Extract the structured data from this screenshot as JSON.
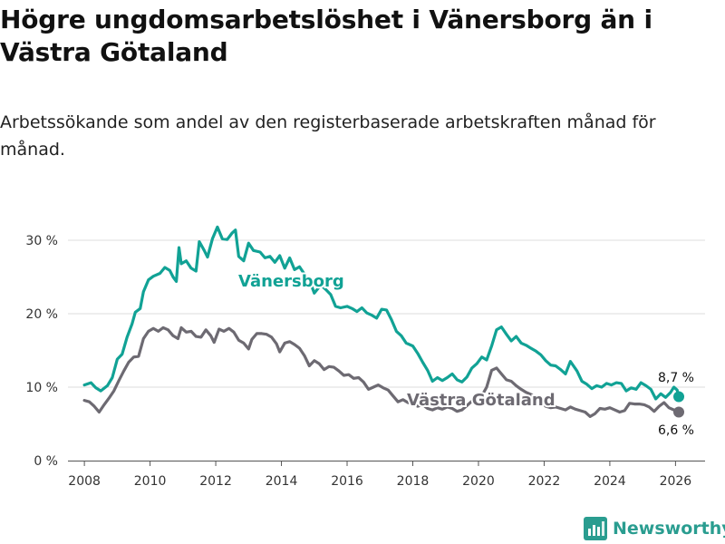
{
  "header": {
    "title": "Högre ungdomsarbetslöshet i Vänersborg än i Västra Götaland",
    "subtitle": "Arbetssökande som andel av den registerbaserade arbetskraften månad för månad."
  },
  "brand": {
    "name": "Newsworthy",
    "icon": "newsworthy-logo-icon"
  },
  "colors": {
    "vanersborg": "#11a295",
    "vastra": "#6d6a72",
    "grid": "#dddddd",
    "axis": "#555555"
  },
  "chart_data": {
    "type": "line",
    "title": "Högre ungdomsarbetslöshet i Vänersborg än i Västra Götaland",
    "xlabel": "",
    "ylabel": "",
    "xlim": [
      2007.5,
      2026.9
    ],
    "ylim": [
      0,
      30
    ],
    "grid": true,
    "x_ticks": [
      2008,
      2010,
      2012,
      2014,
      2016,
      2018,
      2020,
      2022,
      2024,
      2026
    ],
    "y_ticks": [
      {
        "value": 0,
        "label": "0 %"
      },
      {
        "value": 10,
        "label": "10 %"
      },
      {
        "value": 20,
        "label": "20 %"
      },
      {
        "value": 30,
        "label": "30 %"
      }
    ],
    "series": [
      {
        "name": "Vänersborg",
        "color": "#11a295",
        "end_label": "8,7 %",
        "points": [
          [
            2008.0,
            10.3
          ],
          [
            2008.2,
            10.6
          ],
          [
            2008.35,
            9.9
          ],
          [
            2008.5,
            9.5
          ],
          [
            2008.7,
            10.2
          ],
          [
            2008.85,
            11.3
          ],
          [
            2009.0,
            13.8
          ],
          [
            2009.15,
            14.5
          ],
          [
            2009.3,
            16.8
          ],
          [
            2009.45,
            18.6
          ],
          [
            2009.55,
            20.2
          ],
          [
            2009.7,
            20.7
          ],
          [
            2009.8,
            23.0
          ],
          [
            2009.95,
            24.6
          ],
          [
            2010.1,
            25.1
          ],
          [
            2010.3,
            25.5
          ],
          [
            2010.45,
            26.3
          ],
          [
            2010.6,
            25.9
          ],
          [
            2010.7,
            25.0
          ],
          [
            2010.8,
            24.4
          ],
          [
            2010.88,
            29.0
          ],
          [
            2010.95,
            26.8
          ],
          [
            2011.1,
            27.2
          ],
          [
            2011.25,
            26.2
          ],
          [
            2011.4,
            25.8
          ],
          [
            2011.5,
            29.8
          ],
          [
            2011.65,
            28.6
          ],
          [
            2011.75,
            27.7
          ],
          [
            2011.9,
            30.2
          ],
          [
            2012.05,
            31.8
          ],
          [
            2012.2,
            30.2
          ],
          [
            2012.35,
            30.1
          ],
          [
            2012.5,
            31.0
          ],
          [
            2012.6,
            31.4
          ],
          [
            2012.7,
            27.8
          ],
          [
            2012.85,
            27.2
          ],
          [
            2013.0,
            29.6
          ],
          [
            2013.15,
            28.6
          ],
          [
            2013.35,
            28.4
          ],
          [
            2013.5,
            27.6
          ],
          [
            2013.65,
            27.8
          ],
          [
            2013.8,
            27.0
          ],
          [
            2013.95,
            27.9
          ],
          [
            2014.1,
            26.2
          ],
          [
            2014.25,
            27.6
          ],
          [
            2014.4,
            26.0
          ],
          [
            2014.55,
            26.4
          ],
          [
            2014.7,
            25.4
          ],
          [
            2014.85,
            24.6
          ],
          [
            2015.0,
            22.8
          ],
          [
            2015.2,
            23.9
          ],
          [
            2015.35,
            23.3
          ],
          [
            2015.5,
            22.6
          ],
          [
            2015.65,
            21.0
          ],
          [
            2015.8,
            20.8
          ],
          [
            2016.0,
            21.0
          ],
          [
            2016.15,
            20.7
          ],
          [
            2016.3,
            20.3
          ],
          [
            2016.45,
            20.8
          ],
          [
            2016.6,
            20.1
          ],
          [
            2016.75,
            19.8
          ],
          [
            2016.9,
            19.4
          ],
          [
            2017.05,
            20.6
          ],
          [
            2017.2,
            20.5
          ],
          [
            2017.35,
            19.2
          ],
          [
            2017.5,
            17.6
          ],
          [
            2017.65,
            17.0
          ],
          [
            2017.8,
            16.0
          ],
          [
            2018.0,
            15.6
          ],
          [
            2018.15,
            14.6
          ],
          [
            2018.3,
            13.4
          ],
          [
            2018.45,
            12.3
          ],
          [
            2018.6,
            10.8
          ],
          [
            2018.75,
            11.3
          ],
          [
            2018.9,
            10.9
          ],
          [
            2019.05,
            11.3
          ],
          [
            2019.2,
            11.8
          ],
          [
            2019.35,
            11.0
          ],
          [
            2019.5,
            10.7
          ],
          [
            2019.65,
            11.4
          ],
          [
            2019.8,
            12.6
          ],
          [
            2019.95,
            13.2
          ],
          [
            2020.1,
            14.1
          ],
          [
            2020.25,
            13.7
          ],
          [
            2020.4,
            15.6
          ],
          [
            2020.55,
            17.8
          ],
          [
            2020.7,
            18.2
          ],
          [
            2020.85,
            17.2
          ],
          [
            2021.0,
            16.3
          ],
          [
            2021.15,
            16.9
          ],
          [
            2021.3,
            16.0
          ],
          [
            2021.45,
            15.7
          ],
          [
            2021.6,
            15.3
          ],
          [
            2021.75,
            14.9
          ],
          [
            2021.9,
            14.4
          ],
          [
            2022.05,
            13.6
          ],
          [
            2022.2,
            13.0
          ],
          [
            2022.35,
            12.9
          ],
          [
            2022.5,
            12.4
          ],
          [
            2022.65,
            11.8
          ],
          [
            2022.8,
            13.5
          ],
          [
            2023.0,
            12.2
          ],
          [
            2023.15,
            10.8
          ],
          [
            2023.3,
            10.4
          ],
          [
            2023.45,
            9.8
          ],
          [
            2023.6,
            10.2
          ],
          [
            2023.75,
            10.0
          ],
          [
            2023.9,
            10.5
          ],
          [
            2024.05,
            10.3
          ],
          [
            2024.2,
            10.6
          ],
          [
            2024.35,
            10.5
          ],
          [
            2024.5,
            9.5
          ],
          [
            2024.65,
            9.9
          ],
          [
            2024.8,
            9.7
          ],
          [
            2024.95,
            10.6
          ],
          [
            2025.1,
            10.2
          ],
          [
            2025.25,
            9.7
          ],
          [
            2025.4,
            8.4
          ],
          [
            2025.55,
            9.1
          ],
          [
            2025.7,
            8.6
          ],
          [
            2025.85,
            9.3
          ],
          [
            2025.95,
            10.0
          ],
          [
            2026.05,
            9.6
          ],
          [
            2026.1,
            8.7
          ]
        ]
      },
      {
        "name": "Västra Götaland",
        "color": "#6d6a72",
        "end_label": "6,6 %",
        "points": [
          [
            2008.0,
            8.2
          ],
          [
            2008.15,
            8.0
          ],
          [
            2008.3,
            7.4
          ],
          [
            2008.45,
            6.6
          ],
          [
            2008.6,
            7.6
          ],
          [
            2008.75,
            8.5
          ],
          [
            2008.9,
            9.5
          ],
          [
            2009.05,
            10.9
          ],
          [
            2009.2,
            12.2
          ],
          [
            2009.35,
            13.4
          ],
          [
            2009.5,
            14.1
          ],
          [
            2009.65,
            14.2
          ],
          [
            2009.8,
            16.6
          ],
          [
            2009.95,
            17.6
          ],
          [
            2010.1,
            18.0
          ],
          [
            2010.25,
            17.6
          ],
          [
            2010.4,
            18.1
          ],
          [
            2010.55,
            17.8
          ],
          [
            2010.7,
            17.0
          ],
          [
            2010.85,
            16.6
          ],
          [
            2010.95,
            18.1
          ],
          [
            2011.1,
            17.5
          ],
          [
            2011.25,
            17.6
          ],
          [
            2011.4,
            16.9
          ],
          [
            2011.55,
            16.8
          ],
          [
            2011.7,
            17.8
          ],
          [
            2011.85,
            17.0
          ],
          [
            2011.95,
            16.1
          ],
          [
            2012.1,
            17.9
          ],
          [
            2012.25,
            17.6
          ],
          [
            2012.4,
            18.0
          ],
          [
            2012.55,
            17.5
          ],
          [
            2012.7,
            16.4
          ],
          [
            2012.85,
            16.0
          ],
          [
            2013.0,
            15.2
          ],
          [
            2013.1,
            16.5
          ],
          [
            2013.25,
            17.3
          ],
          [
            2013.4,
            17.3
          ],
          [
            2013.55,
            17.2
          ],
          [
            2013.7,
            16.8
          ],
          [
            2013.85,
            15.9
          ],
          [
            2013.95,
            14.8
          ],
          [
            2014.1,
            16.0
          ],
          [
            2014.25,
            16.2
          ],
          [
            2014.4,
            15.8
          ],
          [
            2014.55,
            15.3
          ],
          [
            2014.7,
            14.3
          ],
          [
            2014.85,
            12.9
          ],
          [
            2015.0,
            13.6
          ],
          [
            2015.15,
            13.2
          ],
          [
            2015.3,
            12.4
          ],
          [
            2015.45,
            12.8
          ],
          [
            2015.6,
            12.7
          ],
          [
            2015.75,
            12.2
          ],
          [
            2015.9,
            11.6
          ],
          [
            2016.05,
            11.7
          ],
          [
            2016.2,
            11.2
          ],
          [
            2016.35,
            11.3
          ],
          [
            2016.5,
            10.7
          ],
          [
            2016.65,
            9.7
          ],
          [
            2016.8,
            10.0
          ],
          [
            2016.95,
            10.3
          ],
          [
            2017.1,
            9.9
          ],
          [
            2017.25,
            9.6
          ],
          [
            2017.4,
            8.8
          ],
          [
            2017.55,
            8.0
          ],
          [
            2017.7,
            8.3
          ],
          [
            2017.85,
            7.9
          ],
          [
            2018.0,
            7.8
          ],
          [
            2018.15,
            7.4
          ],
          [
            2018.3,
            7.6
          ],
          [
            2018.45,
            7.1
          ],
          [
            2018.6,
            6.9
          ],
          [
            2018.75,
            7.2
          ],
          [
            2018.9,
            7.0
          ],
          [
            2019.05,
            7.3
          ],
          [
            2019.2,
            7.1
          ],
          [
            2019.35,
            6.7
          ],
          [
            2019.5,
            6.9
          ],
          [
            2019.65,
            7.5
          ],
          [
            2019.8,
            8.1
          ],
          [
            2019.95,
            8.4
          ],
          [
            2020.1,
            8.8
          ],
          [
            2020.25,
            10.0
          ],
          [
            2020.4,
            12.3
          ],
          [
            2020.55,
            12.6
          ],
          [
            2020.7,
            11.8
          ],
          [
            2020.85,
            11.0
          ],
          [
            2021.0,
            10.8
          ],
          [
            2021.15,
            10.2
          ],
          [
            2021.3,
            9.7
          ],
          [
            2021.45,
            9.3
          ],
          [
            2021.6,
            9.0
          ],
          [
            2021.75,
            8.5
          ],
          [
            2021.9,
            7.9
          ],
          [
            2022.05,
            7.4
          ],
          [
            2022.2,
            7.2
          ],
          [
            2022.35,
            7.3
          ],
          [
            2022.5,
            7.1
          ],
          [
            2022.65,
            6.9
          ],
          [
            2022.8,
            7.3
          ],
          [
            2022.95,
            7.0
          ],
          [
            2023.1,
            6.8
          ],
          [
            2023.25,
            6.6
          ],
          [
            2023.4,
            6.0
          ],
          [
            2023.55,
            6.4
          ],
          [
            2023.7,
            7.1
          ],
          [
            2023.85,
            7.0
          ],
          [
            2024.0,
            7.2
          ],
          [
            2024.15,
            6.9
          ],
          [
            2024.3,
            6.6
          ],
          [
            2024.45,
            6.8
          ],
          [
            2024.6,
            7.8
          ],
          [
            2024.75,
            7.7
          ],
          [
            2024.9,
            7.7
          ],
          [
            2025.05,
            7.6
          ],
          [
            2025.2,
            7.3
          ],
          [
            2025.35,
            6.7
          ],
          [
            2025.5,
            7.4
          ],
          [
            2025.65,
            7.9
          ],
          [
            2025.8,
            7.2
          ],
          [
            2025.95,
            6.9
          ],
          [
            2026.1,
            6.6
          ]
        ]
      }
    ],
    "annotations": [
      {
        "series": "Vänersborg",
        "text": "Vänersborg"
      },
      {
        "series": "Västra Götaland",
        "text": "Västra Götaland"
      }
    ]
  }
}
